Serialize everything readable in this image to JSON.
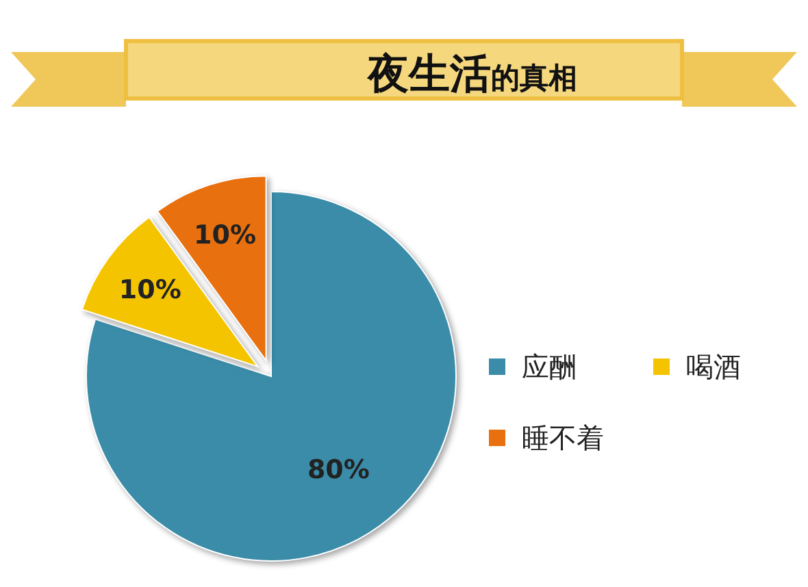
{
  "chart_data": {
    "type": "pie",
    "title": "**夜生活**的真相",
    "categories": [
      "应酬",
      "喝酒",
      "睡不着"
    ],
    "values": [
      80,
      10,
      10
    ],
    "colors": [
      "#3a8ca8",
      "#f5c400",
      "#e8700f"
    ],
    "value_labels": [
      "80%",
      "10%",
      "10%"
    ],
    "legend": "right"
  }
}
